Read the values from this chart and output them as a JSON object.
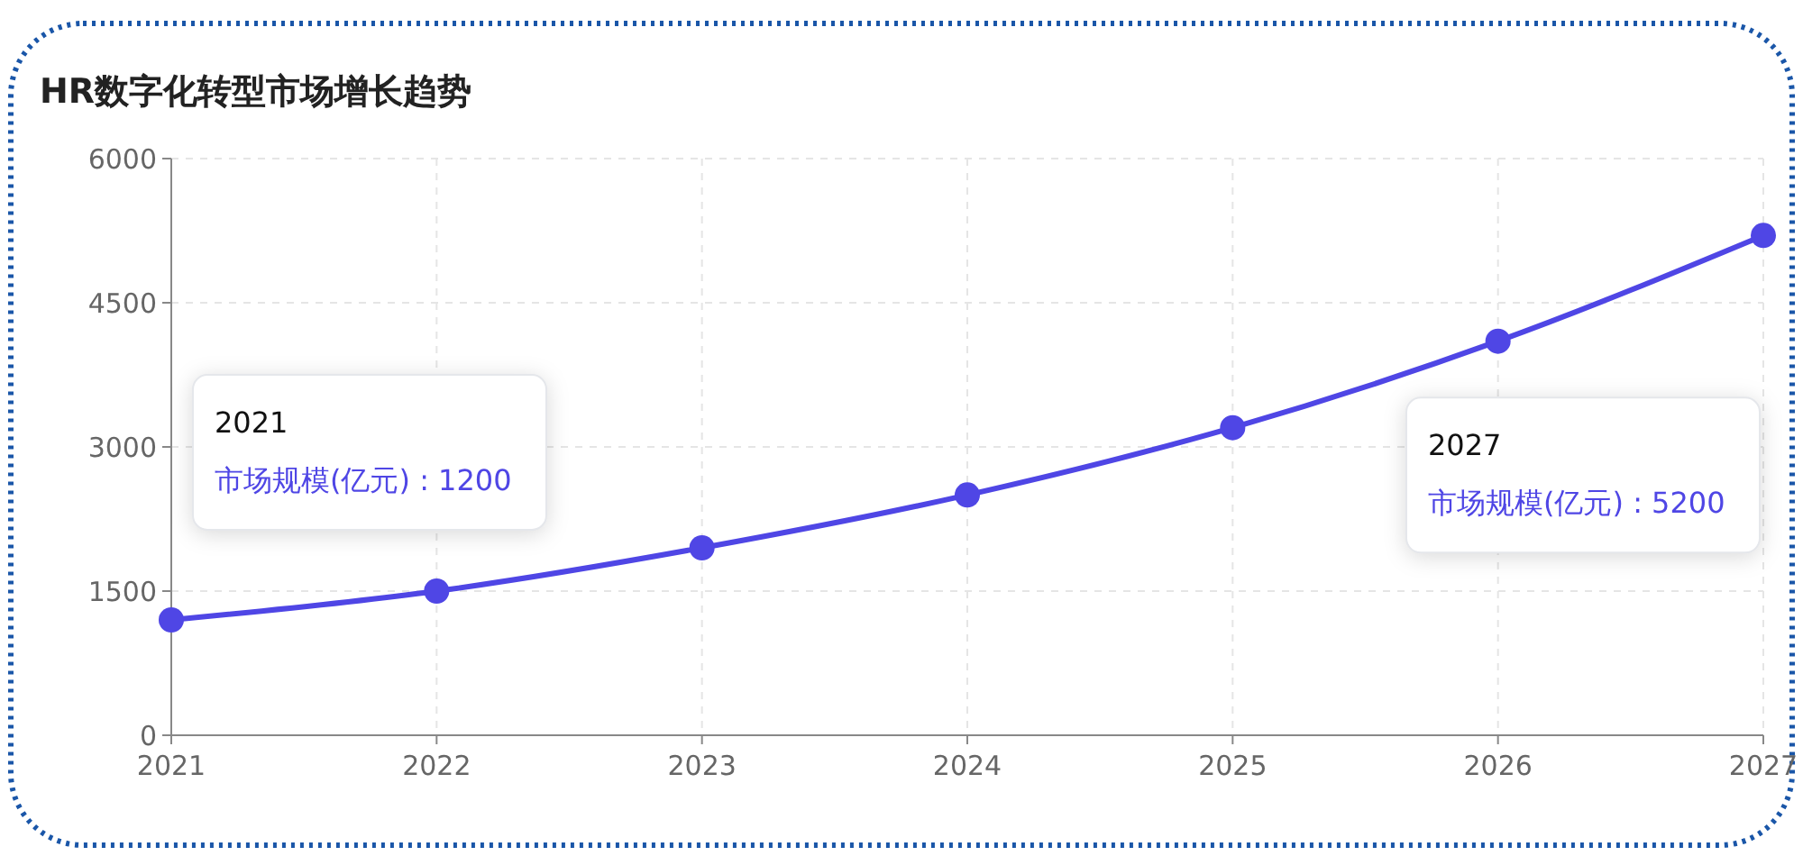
{
  "chart_data": {
    "type": "line",
    "title": "HR数字化转型市场增长趋势",
    "x": [
      2021,
      2022,
      2023,
      2024,
      2025,
      2026,
      2027
    ],
    "series": [
      {
        "color": "#4f46e5",
        "values": [
          1200,
          1500,
          1950,
          2500,
          3200,
          4100,
          5200
        ]
      }
    ],
    "xlim": [
      2021,
      2027
    ],
    "xticks": [
      2021,
      2022,
      2023,
      2024,
      2025,
      2026,
      2027
    ],
    "ylim": [
      0,
      6000
    ],
    "yticks": [
      0,
      1500,
      3000,
      4500,
      6000
    ],
    "grid": true,
    "marker": "circle",
    "line_style": "solid",
    "annotations": [
      "2021\n市场规模(亿元) : 1200",
      "2027\n市场规模(亿元) : 5200"
    ]
  }
}
